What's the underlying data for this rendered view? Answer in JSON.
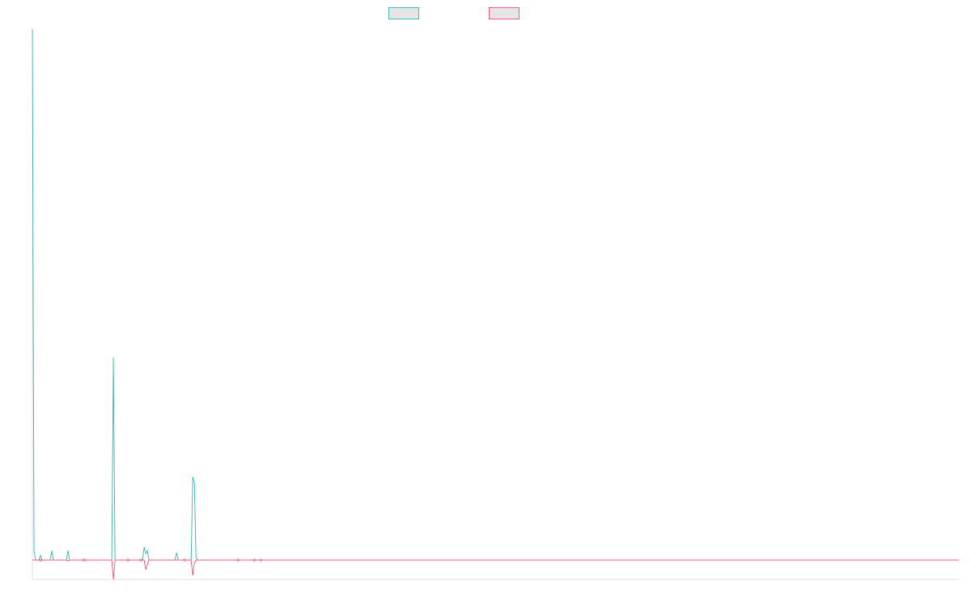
{
  "chart_data": {
    "type": "line",
    "title": "",
    "xlabel": "",
    "ylabel": "",
    "xlim": [
      0,
      572
    ],
    "ylim": [
      -3.66,
      100
    ],
    "grid": false,
    "legend_position": "top",
    "baseline": 0,
    "series": [
      {
        "color": "#4bc0c0",
        "points": [
          [
            0,
            100
          ],
          [
            1,
            1.8
          ],
          [
            2,
            0
          ],
          [
            4,
            0
          ],
          [
            5,
            0.9
          ],
          [
            6,
            0
          ],
          [
            11,
            0
          ],
          [
            12,
            1.8
          ],
          [
            13,
            0
          ],
          [
            21,
            0
          ],
          [
            22,
            1.8
          ],
          [
            23,
            0
          ],
          [
            49,
            0
          ],
          [
            50,
            38.1
          ],
          [
            51,
            0
          ],
          [
            68,
            0
          ],
          [
            69,
            2.4
          ],
          [
            70,
            1.2
          ],
          [
            71,
            1.8
          ],
          [
            72,
            0
          ],
          [
            88,
            0
          ],
          [
            89,
            1.4
          ],
          [
            90,
            0
          ],
          [
            98,
            0
          ],
          [
            99,
            15.7
          ],
          [
            100,
            14.5
          ],
          [
            101,
            0.5
          ],
          [
            102,
            0
          ],
          [
            572,
            0
          ]
        ]
      },
      {
        "color": "#ff6384",
        "points": [
          [
            0,
            0
          ],
          [
            21,
            0
          ],
          [
            22,
            -0.2
          ],
          [
            23,
            0
          ],
          [
            49,
            0
          ],
          [
            50,
            -3.66
          ],
          [
            51,
            0
          ],
          [
            69,
            0
          ],
          [
            70,
            -1.8
          ],
          [
            71,
            -0.8
          ],
          [
            72,
            0
          ],
          [
            98,
            0
          ],
          [
            99,
            -2.9
          ],
          [
            100,
            -0.5
          ],
          [
            101,
            0
          ],
          [
            572,
            0
          ]
        ]
      }
    ],
    "markers": [
      5,
      32,
      59,
      67,
      94,
      127,
      137,
      141
    ]
  }
}
